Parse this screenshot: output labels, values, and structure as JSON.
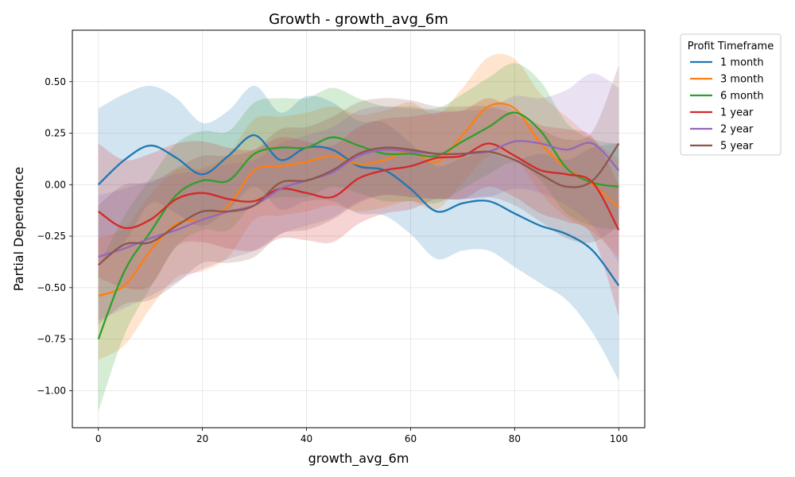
{
  "chart_data": {
    "type": "line",
    "title": "Growth - growth_avg_6m",
    "xlabel": "growth_avg_6m",
    "ylabel": "Partial Dependence",
    "xlim": [
      -5,
      105
    ],
    "ylim": [
      -1.18,
      0.75
    ],
    "xticks": [
      0,
      20,
      40,
      60,
      80,
      100
    ],
    "xtick_labels": [
      "0",
      "20",
      "40",
      "60",
      "80",
      "100"
    ],
    "yticks": [
      -1.0,
      -0.75,
      -0.5,
      -0.25,
      0.0,
      0.25,
      0.5
    ],
    "ytick_labels": [
      "−1.00",
      "−0.75",
      "−0.50",
      "−0.25",
      "0.00",
      "0.25",
      "0.50"
    ],
    "grid": true,
    "legend_title": "Profit Timeframe",
    "legend_position": "outside-right",
    "x": [
      0,
      5,
      10,
      15,
      20,
      25,
      30,
      35,
      40,
      45,
      50,
      55,
      60,
      65,
      70,
      75,
      80,
      85,
      90,
      95,
      100
    ],
    "series": [
      {
        "name": "1 month",
        "color": "#1f77b4",
        "values": [
          0.0,
          0.12,
          0.19,
          0.13,
          0.05,
          0.14,
          0.24,
          0.12,
          0.18,
          0.17,
          0.09,
          0.07,
          -0.02,
          -0.13,
          -0.09,
          -0.08,
          -0.14,
          -0.2,
          -0.24,
          -0.32,
          -0.49
        ],
        "upper": [
          0.37,
          0.44,
          0.48,
          0.42,
          0.3,
          0.36,
          0.48,
          0.35,
          0.43,
          0.4,
          0.31,
          0.3,
          0.2,
          0.09,
          0.13,
          0.15,
          0.12,
          0.15,
          0.12,
          0.18,
          0.2
        ],
        "lower": [
          -0.38,
          -0.28,
          -0.09,
          -0.14,
          -0.2,
          -0.12,
          -0.01,
          -0.12,
          -0.08,
          -0.08,
          -0.14,
          -0.15,
          -0.24,
          -0.36,
          -0.32,
          -0.32,
          -0.4,
          -0.48,
          -0.56,
          -0.72,
          -0.95
        ]
      },
      {
        "name": "3 month",
        "color": "#ff7f0e",
        "values": [
          -0.54,
          -0.49,
          -0.32,
          -0.19,
          -0.17,
          -0.1,
          0.07,
          0.09,
          0.11,
          0.14,
          0.1,
          0.12,
          0.16,
          0.11,
          0.24,
          0.38,
          0.37,
          0.2,
          0.08,
          0.0,
          -0.11
        ],
        "upper": [
          -0.26,
          -0.21,
          -0.05,
          0.07,
          0.08,
          0.15,
          0.32,
          0.33,
          0.35,
          0.38,
          0.34,
          0.36,
          0.4,
          0.34,
          0.47,
          0.62,
          0.61,
          0.44,
          0.33,
          0.22,
          0.12
        ],
        "lower": [
          -0.85,
          -0.78,
          -0.6,
          -0.45,
          -0.42,
          -0.35,
          -0.17,
          -0.15,
          -0.13,
          -0.1,
          -0.13,
          -0.11,
          -0.08,
          -0.12,
          0.01,
          0.14,
          0.13,
          -0.04,
          -0.16,
          -0.23,
          -0.35
        ]
      },
      {
        "name": "6 month",
        "color": "#2ca02c",
        "values": [
          -0.75,
          -0.42,
          -0.23,
          -0.05,
          0.02,
          0.02,
          0.15,
          0.18,
          0.18,
          0.23,
          0.19,
          0.15,
          0.15,
          0.14,
          0.21,
          0.28,
          0.35,
          0.26,
          0.08,
          0.01,
          -0.01
        ],
        "upper": [
          -0.4,
          -0.15,
          0.03,
          0.2,
          0.26,
          0.26,
          0.4,
          0.42,
          0.42,
          0.47,
          0.42,
          0.38,
          0.38,
          0.37,
          0.44,
          0.52,
          0.59,
          0.5,
          0.3,
          0.22,
          0.2
        ],
        "lower": [
          -1.1,
          -0.73,
          -0.5,
          -0.3,
          -0.22,
          -0.22,
          -0.09,
          -0.06,
          -0.06,
          -0.01,
          -0.04,
          -0.08,
          -0.08,
          -0.09,
          -0.02,
          0.05,
          0.11,
          0.02,
          -0.14,
          -0.2,
          -0.22
        ]
      },
      {
        "name": "1 year",
        "color": "#d62728",
        "values": [
          -0.13,
          -0.21,
          -0.17,
          -0.07,
          -0.04,
          -0.07,
          -0.08,
          -0.02,
          -0.04,
          -0.06,
          0.03,
          0.07,
          0.09,
          0.13,
          0.14,
          0.2,
          0.14,
          0.07,
          0.05,
          0.01,
          -0.22
        ],
        "upper": [
          0.2,
          0.12,
          0.15,
          0.2,
          0.21,
          0.18,
          0.17,
          0.23,
          0.21,
          0.19,
          0.28,
          0.32,
          0.33,
          0.35,
          0.36,
          0.42,
          0.36,
          0.29,
          0.27,
          0.23,
          0.0
        ],
        "lower": [
          -0.45,
          -0.5,
          -0.49,
          -0.3,
          -0.28,
          -0.31,
          -0.32,
          -0.26,
          -0.27,
          -0.28,
          -0.19,
          -0.14,
          -0.12,
          -0.07,
          -0.07,
          -0.01,
          -0.06,
          -0.14,
          -0.18,
          -0.25,
          -0.64
        ]
      },
      {
        "name": "2 year",
        "color": "#9467bd",
        "values": [
          -0.35,
          -0.31,
          -0.26,
          -0.22,
          -0.17,
          -0.13,
          -0.1,
          -0.02,
          0.02,
          0.06,
          0.14,
          0.17,
          0.16,
          0.15,
          0.15,
          0.16,
          0.21,
          0.2,
          0.17,
          0.2,
          0.07
        ],
        "upper": [
          -0.05,
          -0.02,
          0.02,
          0.05,
          0.07,
          0.1,
          0.12,
          0.2,
          0.24,
          0.28,
          0.36,
          0.38,
          0.37,
          0.36,
          0.36,
          0.37,
          0.43,
          0.42,
          0.46,
          0.54,
          0.47
        ],
        "lower": [
          -0.66,
          -0.6,
          -0.54,
          -0.47,
          -0.41,
          -0.36,
          -0.32,
          -0.24,
          -0.2,
          -0.16,
          -0.08,
          -0.05,
          -0.06,
          -0.07,
          -0.07,
          -0.06,
          -0.02,
          -0.04,
          -0.1,
          -0.2,
          -0.38
        ]
      },
      {
        "name": "5 year",
        "color": "#8c564b",
        "values": [
          -0.39,
          -0.29,
          -0.28,
          -0.2,
          -0.13,
          -0.13,
          -0.1,
          0.01,
          0.02,
          0.07,
          0.15,
          0.18,
          0.17,
          0.15,
          0.15,
          0.16,
          0.12,
          0.05,
          -0.01,
          0.02,
          0.2
        ],
        "upper": [
          -0.1,
          0.0,
          0.01,
          0.08,
          0.14,
          0.14,
          0.17,
          0.27,
          0.28,
          0.33,
          0.4,
          0.42,
          0.41,
          0.38,
          0.38,
          0.38,
          0.34,
          0.27,
          0.22,
          0.26,
          0.58
        ],
        "lower": [
          -0.68,
          -0.58,
          -0.56,
          -0.48,
          -0.38,
          -0.38,
          -0.35,
          -0.24,
          -0.22,
          -0.17,
          -0.09,
          -0.05,
          -0.06,
          -0.07,
          -0.07,
          -0.06,
          -0.1,
          -0.18,
          -0.26,
          -0.28,
          -0.2
        ]
      }
    ]
  }
}
